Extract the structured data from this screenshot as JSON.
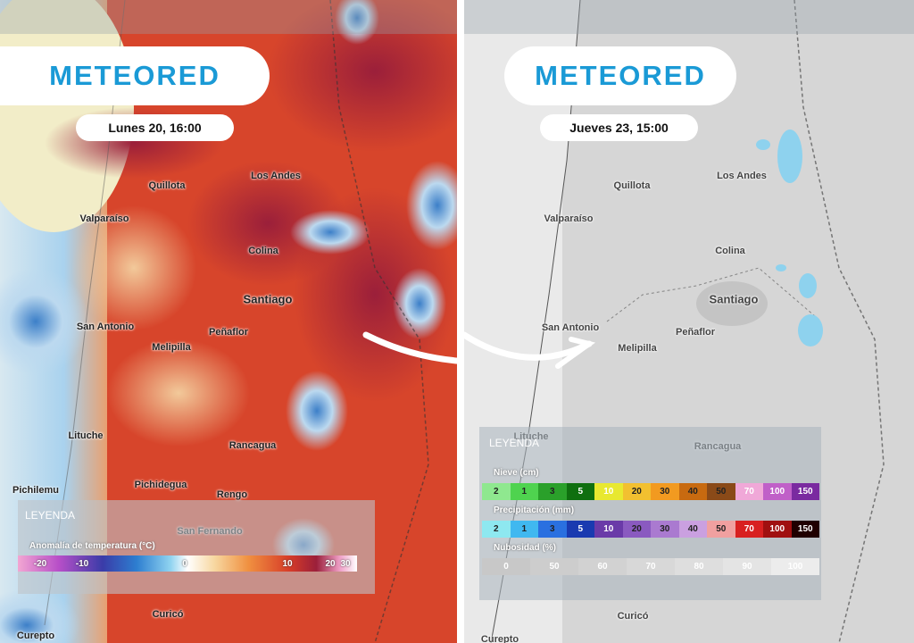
{
  "panels": [
    {
      "brand": "METEORED",
      "date": "Lunes 20, 16:00",
      "cities": [
        "Quillota",
        "Los Andes",
        "Valparaíso",
        "Colina",
        "Santiago",
        "San Antonio",
        "Peñaflor",
        "Melipilla",
        "Lituche",
        "Rancagua",
        "Pichilemu",
        "Pichidegua",
        "Rengo",
        "San Fernando",
        "Curicó",
        "Curepto"
      ],
      "legend": {
        "title": "LEYENDA",
        "scale_title": "Anomalía de temperatura (°C)",
        "ticks": [
          -20,
          -10,
          0,
          10,
          20,
          30
        ]
      }
    },
    {
      "brand": "METEORED",
      "date": "Jueves 23, 15:00",
      "cities": [
        "Quillota",
        "Los Andes",
        "Valparaíso",
        "Colina",
        "Santiago",
        "San Antonio",
        "Peñaflor",
        "Melipilla",
        "Lituche",
        "Rancagua",
        "Curicó",
        "Curepto"
      ],
      "legend": {
        "title": "LEYENDA",
        "scales": [
          {
            "title": "Nieve (cm)",
            "labels": [
              2,
              1,
              3,
              5,
              10,
              20,
              30,
              40,
              50,
              70,
              100,
              150
            ]
          },
          {
            "title": "Precipitación (mm)",
            "labels": [
              2,
              1,
              3,
              5,
              10,
              20,
              30,
              40,
              50,
              70,
              100,
              150
            ]
          },
          {
            "title": "Nubosidad (%)",
            "labels": [
              0,
              50,
              60,
              70,
              80,
              90,
              100
            ]
          }
        ]
      }
    }
  ]
}
